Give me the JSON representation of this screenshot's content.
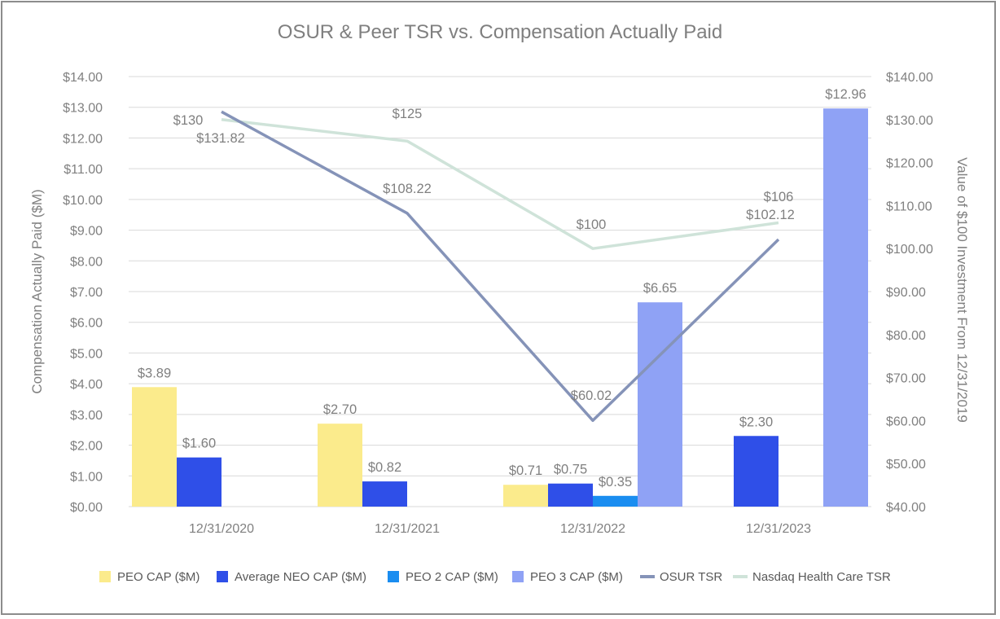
{
  "chart_data": {
    "type": "bar",
    "title": "OSUR & Peer TSR vs. Compensation Actually Paid",
    "categories": [
      "12/31/2020",
      "12/31/2021",
      "12/31/2022",
      "12/31/2023"
    ],
    "ylabel": "Compensation Actually Paid ($M)",
    "y2label": "Value of $100 Investment From 12/31/2019",
    "ylim": [
      0,
      14
    ],
    "y2lim": [
      40,
      140
    ],
    "yticks": [
      "$0.00",
      "$1.00",
      "$2.00",
      "$3.00",
      "$4.00",
      "$5.00",
      "$6.00",
      "$7.00",
      "$8.00",
      "$9.00",
      "$10.00",
      "$11.00",
      "$12.00",
      "$13.00",
      "$14.00"
    ],
    "y2ticks": [
      "$40.00",
      "$50.00",
      "$60.00",
      "$70.00",
      "$80.00",
      "$90.00",
      "$100.00",
      "$110.00",
      "$120.00",
      "$130.00",
      "$140.00"
    ],
    "grid": true,
    "legend_position": "bottom",
    "bar_series": [
      {
        "name": "PEO CAP ($M)",
        "color": "#fbeb8c",
        "values": [
          3.89,
          2.7,
          0.71,
          null
        ],
        "labels": [
          "$3.89",
          "$2.70",
          "$0.71",
          ""
        ]
      },
      {
        "name": "Average NEO CAP ($M)",
        "color": "#2f4fe8",
        "values": [
          1.6,
          0.82,
          0.75,
          2.3
        ],
        "labels": [
          "$1.60",
          "$0.82",
          "$0.75",
          "$2.30"
        ]
      },
      {
        "name": "PEO 2 CAP ($M)",
        "color": "#1a8df0",
        "values": [
          null,
          null,
          0.35,
          null
        ],
        "labels": [
          "",
          "",
          "$0.35",
          ""
        ]
      },
      {
        "name": "PEO 3 CAP ($M)",
        "color": "#8fa2f5",
        "values": [
          null,
          null,
          6.65,
          12.96
        ],
        "labels": [
          "",
          "",
          "$6.65",
          "$12.96"
        ]
      }
    ],
    "line_series": [
      {
        "name": "OSUR TSR",
        "color": "#8593b8",
        "axis": "right",
        "values": [
          131.82,
          108.22,
          60.02,
          102.12
        ],
        "labels": [
          "$131.82",
          "$108.22",
          "$60.02",
          "$102.12"
        ]
      },
      {
        "name": "Nasdaq Health Care TSR",
        "color": "#cfe3d9",
        "axis": "right",
        "values": [
          130,
          125,
          100,
          106
        ],
        "labels": [
          "$130",
          "$125",
          "$100",
          "$106"
        ]
      }
    ]
  }
}
